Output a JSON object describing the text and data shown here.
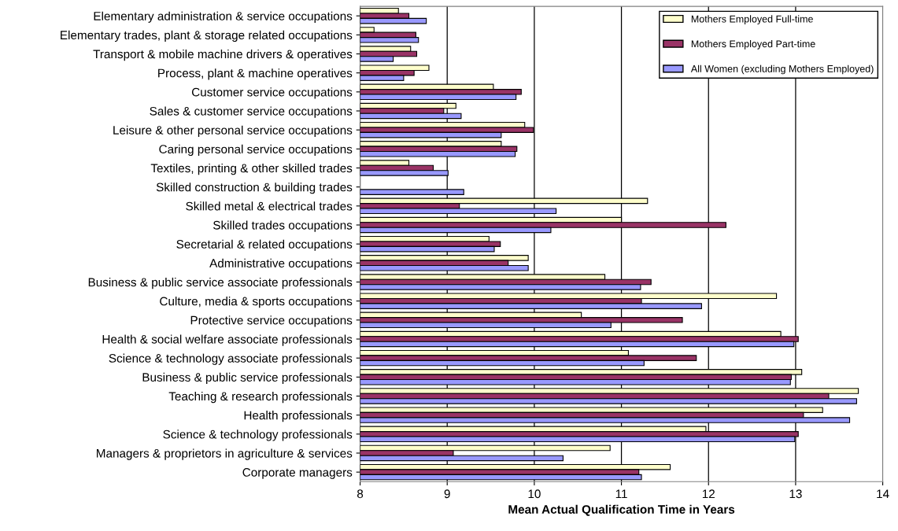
{
  "chart_data": {
    "type": "bar",
    "orientation": "horizontal",
    "xlabel": "Mean Actual Qualification Time in Years",
    "categories": [
      "Elementary administration & service occupations",
      "Elementary trades, plant & storage related occupations",
      "Transport & mobile machine drivers & operatives",
      "Process, plant & machine operatives",
      "Customer service occupations",
      "Sales & customer service occupations",
      "Leisure & other personal service occupations",
      "Caring personal service occupations",
      "Textiles, printing & other skilled trades",
      "Skilled construction & building trades",
      "Skilled metal & electrical trades",
      "Skilled trades occupations",
      "Secretarial & related occupations",
      "Administrative occupations",
      "Business & public service associate professionals",
      "Culture, media & sports occupations",
      "Protective service occupations",
      "Health & social welfare associate professionals",
      "Science & technology associate professionals",
      "Business & public service professionals",
      "Teaching & research professionals",
      "Health professionals",
      "Science & technology professionals",
      "Managers & proprietors in agriculture & services",
      "Corporate managers"
    ],
    "series": [
      {
        "name": "Mothers Employed Full-time",
        "color": "#ffffcc",
        "values": [
          8.44,
          8.16,
          8.58,
          8.79,
          9.53,
          9.1,
          9.89,
          9.62,
          8.56,
          null,
          11.3,
          11.0,
          9.48,
          9.93,
          10.81,
          12.78,
          10.54,
          12.83,
          11.08,
          13.07,
          13.72,
          13.31,
          11.97,
          10.87,
          11.56
        ]
      },
      {
        "name": "Mothers Employed Part-time",
        "color": "#993366",
        "values": [
          8.56,
          8.64,
          8.65,
          8.62,
          9.85,
          8.96,
          9.99,
          9.8,
          8.84,
          null,
          9.14,
          12.2,
          9.61,
          9.7,
          11.34,
          11.23,
          11.7,
          13.03,
          11.86,
          12.95,
          13.38,
          13.09,
          13.03,
          9.07,
          11.2
        ]
      },
      {
        "name": "All Women (excluding Mothers Employed)",
        "color": "#9999ff",
        "values": [
          8.76,
          8.67,
          8.38,
          8.5,
          9.79,
          9.16,
          9.62,
          9.78,
          9.01,
          9.19,
          10.25,
          10.19,
          9.54,
          9.93,
          11.22,
          11.92,
          10.88,
          12.98,
          11.26,
          12.94,
          13.7,
          13.62,
          12.99,
          10.33,
          11.23
        ]
      }
    ],
    "xlim": [
      8,
      14
    ],
    "xticks": [
      8,
      9,
      10,
      11,
      12,
      13,
      14
    ],
    "grid": "x",
    "legend": "top right"
  }
}
